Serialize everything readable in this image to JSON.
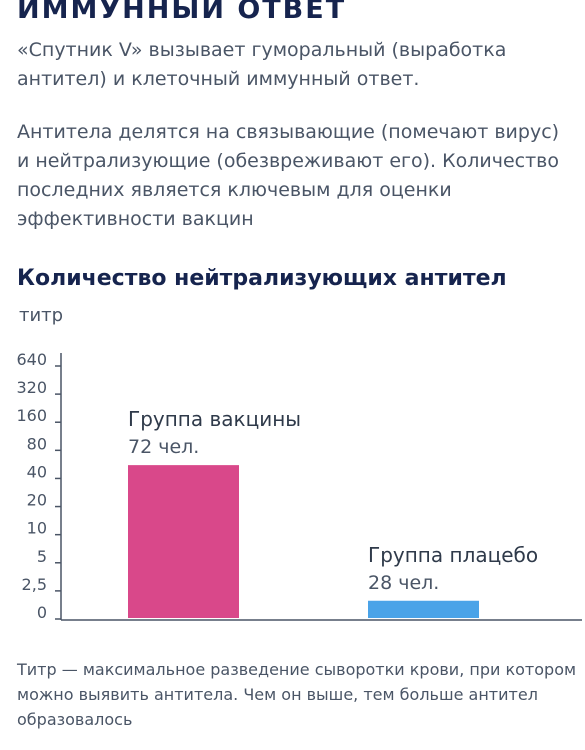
{
  "header": {
    "title": "ИММУННЫЙ ОТВЕТ",
    "paragraph1": "«Спутник V» вызывает гуморальный (выработка антител) и клеточный иммунный ответ.",
    "paragraph2": "Антитела делятся на связывающие (помечают вирус) и нейтрализующие (обезвреживают его). Количество последних является ключевым для оценки эффективности вакцин"
  },
  "chart_data": {
    "type": "bar",
    "title": "Количество нейтрализующих антител",
    "ylabel": "титр",
    "yticks": [
      "0",
      "2,5",
      "5",
      "10",
      "20",
      "40",
      "80",
      "160",
      "320",
      "640"
    ],
    "categories": [
      "Группа вакцины",
      "Группа плацебо"
    ],
    "category_notes": [
      "72 чел.",
      "28 чел."
    ],
    "values": [
      49,
      1
    ],
    "colors": [
      "#d9488a",
      "#4aa3e8"
    ],
    "axis_color": "#4a5566",
    "grid": false,
    "legend": false
  },
  "footnote": "Титр — максимальное разведение сыворотки крови, при котором можно выявить антитела. Чем он выше, тем больше антител образовалось"
}
